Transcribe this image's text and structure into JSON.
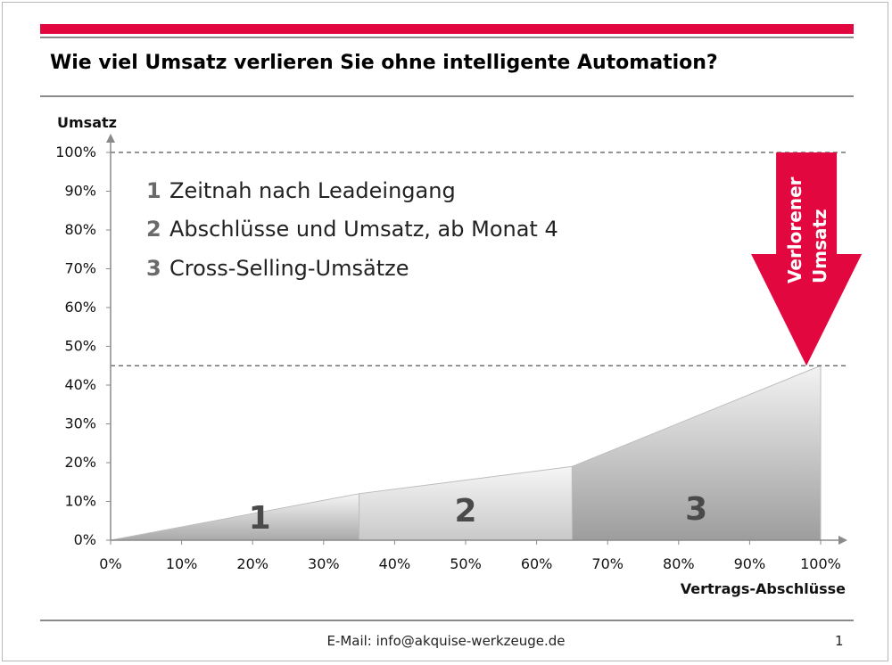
{
  "slide": {
    "title": "Wie viel Umsatz verlieren Sie ohne intelligente Automation?",
    "footer_email": "E-Mail: info@akquise-werkzeuge.de",
    "page_number": "1",
    "accent_color": "#e3073f",
    "rule_color": "#8a8a8a"
  },
  "chart_data": {
    "type": "area",
    "title": "",
    "xlabel": "Vertrags-Abschlüsse",
    "ylabel": "Umsatz",
    "xlim": [
      0,
      100
    ],
    "ylim": [
      0,
      100
    ],
    "x_ticks": [
      "0%",
      "10%",
      "20%",
      "30%",
      "40%",
      "50%",
      "60%",
      "70%",
      "80%",
      "90%",
      "100%"
    ],
    "y_ticks": [
      "0%",
      "10%",
      "20%",
      "30%",
      "40%",
      "50%",
      "60%",
      "70%",
      "80%",
      "90%",
      "100%"
    ],
    "curve": {
      "x": [
        0,
        35,
        65,
        100
      ],
      "y": [
        0,
        12,
        19,
        45
      ]
    },
    "segments": [
      {
        "label": "1",
        "x_start": 0,
        "x_end": 35,
        "color_top": "#f6f6f6",
        "color_bottom": "#a9a9a9"
      },
      {
        "label": "2",
        "x_start": 35,
        "x_end": 65,
        "color_top": "#f6f6f6",
        "color_bottom": "#c9c9c9"
      },
      {
        "label": "3",
        "x_start": 65,
        "x_end": 100,
        "color_top": "#f3f3f3",
        "color_bottom": "#9d9d9d"
      }
    ],
    "reference_lines": [
      100,
      45
    ],
    "legend": [
      {
        "number": "1",
        "text": "Zeitnah nach Leadeingang"
      },
      {
        "number": "2",
        "text": "Abschlüsse und Umsatz, ab Monat 4"
      },
      {
        "number": "3",
        "text": "Cross-Selling-Umsätze"
      }
    ],
    "annotation": {
      "text_line1": "Verlorener",
      "text_line2": "Umsatz",
      "from_y": 100,
      "to_y": 45,
      "x": 98,
      "color": "#e3073f"
    },
    "grid": false
  }
}
